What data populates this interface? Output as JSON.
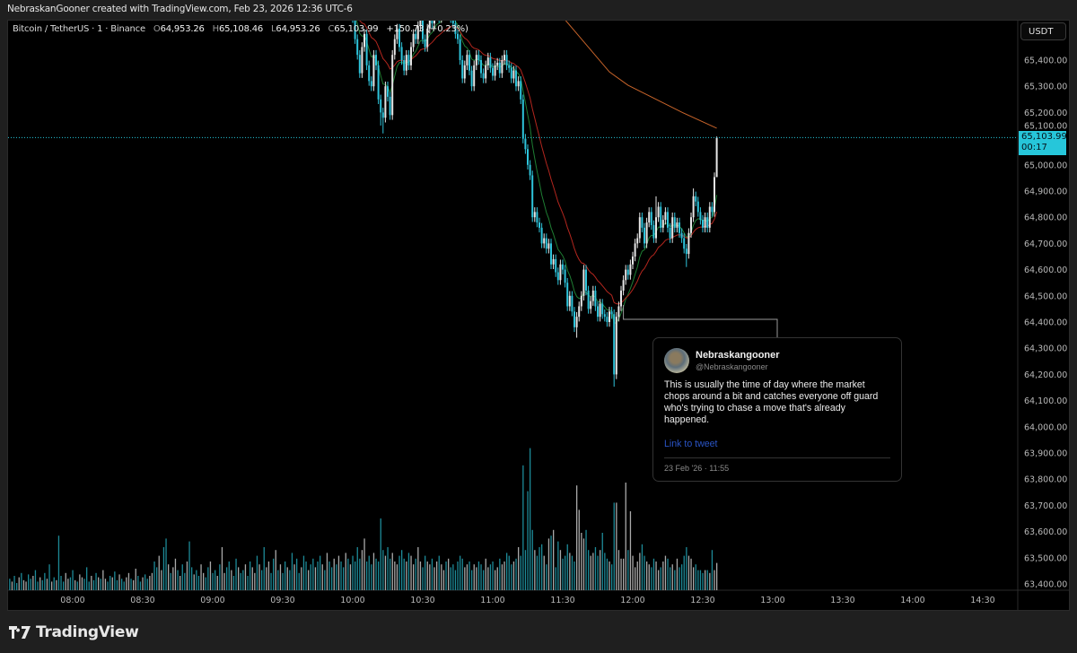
{
  "caption": "NebraskanGooner created with TradingView.com, Feb 23, 2026 12:36 UTC-6",
  "legend": {
    "symbol": "Bitcoin / TetherUS · 1 · Binance",
    "o_label": "O",
    "o": "64,953.26",
    "h_label": "H",
    "h": "65,108.46",
    "l_label": "L",
    "l": "64,953.26",
    "c_label": "C",
    "c": "65,103.99",
    "change": "+150.73 (+0.23%)"
  },
  "price_axis": {
    "currency": "USDT",
    "last_price": "65,103.99",
    "countdown": "00:17"
  },
  "tweet": {
    "name": "Nebraskangooner",
    "handle": "@Nebraskangooner",
    "text": "This is usually the time of day where the market chops around a bit and catches everyone off guard who's trying to chase a move that's already happened.",
    "link": "Link to tweet",
    "date": "23 Feb '26 · 11:55",
    "anchor_time": "11:56"
  },
  "brand": "TradingView",
  "colors": {
    "up": "#e6e6e6",
    "down": "#2ec4db",
    "volume_up": "#a9a9a9",
    "volume_down": "#1d8a98",
    "ema_fast": "#1e7d33",
    "ema_slow": "#b3261e",
    "ma_long": "#c8642a",
    "last_price_line": "#26c6da"
  },
  "chart_data": {
    "type": "candlestick",
    "interval": "1 minute",
    "ylim": [
      63350,
      65554
    ],
    "y_ticks": [
      "65,400.00",
      "65,300.00",
      "65,200.00",
      "65,100.00",
      "65,000.00",
      "64,900.00",
      "64,800.00",
      "64,700.00",
      "64,600.00",
      "64,500.00",
      "64,400.00",
      "64,300.00",
      "64,200.00",
      "64,100.00",
      "64,000.00",
      "63,900.00",
      "63,800.00",
      "63,700.00",
      "63,600.00",
      "63,500.00",
      "63,400.00"
    ],
    "x_ticks": [
      "08:00",
      "08:30",
      "09:00",
      "09:30",
      "10:00",
      "10:30",
      "11:00",
      "11:30",
      "12:00",
      "12:30",
      "13:00",
      "13:30",
      "14:00",
      "14:30"
    ],
    "candles_start": "10:00",
    "closes": [
      65560,
      65480,
      65420,
      65350,
      65450,
      65500,
      65380,
      65320,
      65300,
      65420,
      65380,
      65250,
      65200,
      65180,
      65300,
      65260,
      65190,
      65420,
      65480,
      65520,
      65450,
      65400,
      65360,
      65420,
      65380,
      65450,
      65500,
      65480,
      65530,
      65560,
      65480,
      65450,
      65520,
      65560,
      65540,
      65580,
      65600,
      65560,
      65580,
      65600,
      65570,
      65590,
      65560,
      65540,
      65500,
      65480,
      65400,
      65330,
      65380,
      65420,
      65360,
      65300,
      65380,
      65420,
      65400,
      65350,
      65330,
      65380,
      65410,
      65370,
      65340,
      65380,
      65390,
      65350,
      65400,
      65420,
      65380,
      65370,
      65330,
      65360,
      65300,
      65320,
      65250,
      65100,
      65060,
      65000,
      64960,
      64800,
      64820,
      64780,
      64760,
      64700,
      64720,
      64680,
      64700,
      64620,
      64640,
      64590,
      64560,
      64620,
      64600,
      64550,
      64460,
      64500,
      64440,
      64380,
      64420,
      64460,
      64500,
      64600,
      64520,
      64450,
      64480,
      64520,
      64460,
      64420,
      64470,
      64430,
      64420,
      64400,
      64440,
      64430,
      64200,
      64420,
      64460,
      64520,
      64560,
      64600,
      64580,
      64620,
      64650,
      64700,
      64720,
      64800,
      64760,
      64700,
      64780,
      64820,
      64770,
      64720,
      64800,
      64840,
      64760,
      64790,
      64820,
      64760,
      64720,
      64800,
      64760,
      64780,
      64740,
      64720,
      64680,
      64660,
      64740,
      64800,
      64880,
      64860,
      64820,
      64790,
      64760,
      64800,
      64760,
      64840,
      64820,
      64953.26,
      65103.99
    ],
    "last_candle": {
      "open": 64953.26,
      "high": 65108.46,
      "low": 64953.26,
      "close": 65103.99
    },
    "wicks": [
      {
        "time": "10:12",
        "low": 65150
      },
      {
        "time": "10:13",
        "low": 65120
      },
      {
        "time": "11:36",
        "low": 64340
      },
      {
        "time": "11:52",
        "low": 64153
      },
      {
        "time": "12:10",
        "high": 64880
      },
      {
        "time": "12:23",
        "low": 64610
      },
      {
        "time": "12:26",
        "high": 64910
      }
    ],
    "ma_long_points": [
      {
        "time": "11:31",
        "value": 65554
      },
      {
        "time": "11:50",
        "value": 65355
      },
      {
        "time": "11:58",
        "value": 65304
      },
      {
        "time": "12:21",
        "value": 65201
      },
      {
        "time": "12:36",
        "value": 65140
      }
    ],
    "volume_start": "07:33",
    "volume": [
      8,
      6,
      10,
      5,
      9,
      12,
      7,
      6,
      11,
      8,
      10,
      14,
      6,
      9,
      7,
      12,
      8,
      18,
      6,
      9,
      7,
      38,
      10,
      6,
      12,
      8,
      9,
      14,
      7,
      6,
      11,
      9,
      8,
      16,
      6,
      10,
      7,
      12,
      9,
      8,
      14,
      8,
      6,
      10,
      9,
      13,
      7,
      11,
      8,
      6,
      9,
      12,
      8,
      7,
      15,
      10,
      6,
      9,
      11,
      8,
      10,
      12,
      20,
      16,
      24,
      14,
      30,
      36,
      18,
      12,
      16,
      22,
      14,
      10,
      18,
      12,
      20,
      34,
      16,
      11,
      14,
      10,
      18,
      12,
      9,
      16,
      20,
      12,
      14,
      10,
      18,
      30,
      12,
      16,
      20,
      14,
      10,
      22,
      16,
      12,
      14,
      18,
      10,
      20,
      16,
      12,
      24,
      18,
      14,
      30,
      16,
      20,
      12,
      22,
      28,
      14,
      18,
      12,
      20,
      16,
      14,
      26,
      18,
      22,
      12,
      16,
      24,
      20,
      14,
      18,
      22,
      16,
      20,
      24,
      18,
      14,
      26,
      20,
      16,
      22,
      18,
      24,
      20,
      16,
      26,
      22,
      18,
      24,
      20,
      30,
      22,
      28,
      36,
      20,
      24,
      18,
      26,
      22,
      20,
      50,
      28,
      24,
      30,
      22,
      26,
      20,
      18,
      24,
      28,
      22,
      20,
      26,
      24,
      18,
      22,
      30,
      20,
      16,
      24,
      20,
      18,
      22,
      16,
      20,
      24,
      18,
      14,
      20,
      22,
      16,
      18,
      14,
      20,
      24,
      22,
      16,
      18,
      20,
      14,
      18,
      16,
      20,
      18,
      14,
      22,
      16,
      18,
      20,
      14,
      16,
      22,
      18,
      20,
      26,
      24,
      18,
      20,
      22,
      30,
      24,
      87,
      28,
      69,
      99,
      42,
      28,
      24,
      30,
      32,
      24,
      18,
      36,
      38,
      42,
      16,
      34,
      28,
      22,
      24,
      32,
      26,
      24,
      20,
      73,
      56,
      40,
      36,
      42,
      28,
      24,
      26,
      30,
      24,
      28,
      40,
      26,
      22,
      20,
      18,
      61,
      61,
      28,
      22,
      22,
      75,
      28,
      55,
      24,
      16,
      20,
      26,
      32,
      24,
      20,
      18,
      16,
      22,
      20,
      14,
      16,
      20,
      24,
      22,
      16,
      18,
      14,
      22,
      16,
      18,
      24,
      30,
      24,
      22,
      16,
      18,
      14,
      14,
      12,
      14,
      14,
      12,
      28,
      14,
      19
    ],
    "volume_dir_premarket": "dudduduuddudduddudududdduudduduudddudduduudduddudduuduuddudduudduudduduududduddudduuddudduduuddudduddudduududduuddududduddudduddudduddududdu"
  }
}
